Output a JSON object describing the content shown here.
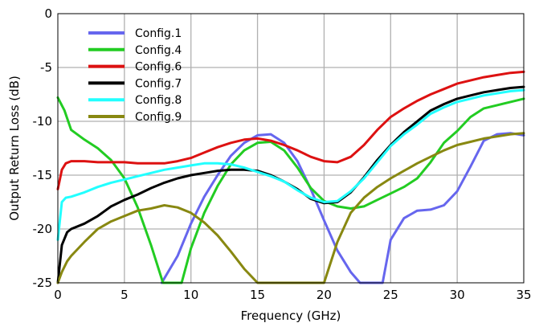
{
  "chart_data": {
    "type": "line",
    "title": "",
    "xlabel": "Frequency (GHz)",
    "ylabel": "Output Return Loss (dB)",
    "xlim": [
      0,
      35
    ],
    "ylim": [
      -25,
      0
    ],
    "xticks": [
      0,
      5,
      10,
      15,
      20,
      25,
      30,
      35
    ],
    "yticks": [
      0,
      -5,
      -10,
      -15,
      -20,
      -25
    ],
    "grid": true,
    "legend_position": "top-left",
    "series": [
      {
        "name": "Config.1",
        "color": "#6666ee",
        "x": [
          7.8,
          9,
          10,
          11,
          12,
          13,
          14,
          15,
          16,
          17,
          18,
          19,
          20,
          21,
          22,
          22.7,
          24.4,
          25,
          26,
          27,
          28,
          29,
          30,
          31,
          32,
          33,
          34,
          35
        ],
        "y": [
          -25,
          -22.5,
          -19.5,
          -17,
          -15,
          -13.2,
          -12,
          -11.3,
          -11.2,
          -12,
          -13.7,
          -16.3,
          -19.2,
          -22,
          -24,
          -25,
          -25,
          -21,
          -19,
          -18.3,
          -18.2,
          -17.8,
          -16.5,
          -14.2,
          -11.8,
          -11.2,
          -11.1,
          -11.3
        ]
      },
      {
        "name": "Config.4",
        "color": "#22cc22",
        "x": [
          0,
          0.5,
          1,
          2,
          3,
          4,
          5,
          6,
          7,
          7.9,
          9.3,
          10,
          11,
          12,
          13,
          14,
          15,
          16,
          17,
          18,
          19,
          20,
          21,
          22,
          23,
          24,
          25,
          26,
          27,
          28,
          29,
          30,
          31,
          32,
          33,
          34,
          35
        ],
        "y": [
          -7.8,
          -9,
          -10.8,
          -11.7,
          -12.5,
          -13.6,
          -15.3,
          -18,
          -21.5,
          -25,
          -25,
          -21.8,
          -18.5,
          -16,
          -14,
          -12.7,
          -12,
          -11.9,
          -12.7,
          -14.3,
          -16.2,
          -17.4,
          -17.9,
          -18.1,
          -17.9,
          -17.3,
          -16.7,
          -16.1,
          -15.3,
          -13.8,
          -12,
          -10.9,
          -9.6,
          -8.8,
          -8.5,
          -8.2,
          -7.9
        ]
      },
      {
        "name": "Config.6",
        "color": "#dd1111",
        "x": [
          0,
          0.3,
          0.6,
          1,
          2,
          3,
          4,
          5,
          6,
          7,
          8,
          9,
          10,
          11,
          12,
          13,
          14,
          15,
          16,
          17,
          18,
          19,
          20,
          21,
          22,
          23,
          24,
          25,
          26,
          27,
          28,
          29,
          30,
          31,
          32,
          33,
          34,
          35
        ],
        "y": [
          -16.3,
          -14.5,
          -13.9,
          -13.7,
          -13.7,
          -13.8,
          -13.8,
          -13.8,
          -13.9,
          -13.9,
          -13.9,
          -13.7,
          -13.4,
          -12.9,
          -12.4,
          -12,
          -11.7,
          -11.6,
          -11.8,
          -12.2,
          -12.7,
          -13.3,
          -13.7,
          -13.8,
          -13.3,
          -12.2,
          -10.8,
          -9.6,
          -8.8,
          -8.1,
          -7.5,
          -7,
          -6.5,
          -6.2,
          -5.9,
          -5.7,
          -5.5,
          -5.4
        ]
      },
      {
        "name": "Config.7",
        "color": "#000000",
        "x": [
          0,
          0.3,
          0.7,
          1,
          2,
          3,
          4,
          5,
          6,
          7,
          8,
          9,
          10,
          11,
          12,
          13,
          14,
          15,
          16,
          17,
          18,
          19,
          20,
          21,
          22,
          23,
          24,
          25,
          26,
          27,
          28,
          29,
          30,
          31,
          32,
          33,
          34,
          35
        ],
        "y": [
          -25,
          -21.5,
          -20.3,
          -20,
          -19.5,
          -18.8,
          -17.9,
          -17.3,
          -16.8,
          -16.2,
          -15.7,
          -15.3,
          -15,
          -14.8,
          -14.6,
          -14.5,
          -14.5,
          -14.6,
          -15,
          -15.6,
          -16.3,
          -17.2,
          -17.6,
          -17.5,
          -16.6,
          -15.2,
          -13.6,
          -12.2,
          -11,
          -10,
          -9,
          -8.4,
          -7.9,
          -7.6,
          -7.3,
          -7.1,
          -6.9,
          -6.8
        ]
      },
      {
        "name": "Config.8",
        "color": "#22ffff",
        "x": [
          0,
          0.3,
          0.6,
          1,
          2,
          3,
          4,
          5,
          6,
          7,
          8,
          9,
          10,
          11,
          12,
          13,
          14,
          15,
          16,
          17,
          18,
          19,
          20,
          21,
          22,
          23,
          24,
          25,
          26,
          27,
          28,
          29,
          30,
          31,
          32,
          33,
          34,
          35
        ],
        "y": [
          -21,
          -17.5,
          -17.1,
          -17,
          -16.6,
          -16.1,
          -15.7,
          -15.4,
          -15.1,
          -14.8,
          -14.5,
          -14.3,
          -14.1,
          -13.9,
          -13.9,
          -14,
          -14.3,
          -14.7,
          -15.1,
          -15.6,
          -16.4,
          -17.1,
          -17.5,
          -17.4,
          -16.5,
          -15.3,
          -13.8,
          -12.3,
          -11.2,
          -10.3,
          -9.3,
          -8.7,
          -8.2,
          -7.9,
          -7.6,
          -7.4,
          -7.2,
          -7.1
        ]
      },
      {
        "name": "Config.9",
        "color": "#888811",
        "x": [
          0,
          0.3,
          0.7,
          1,
          2,
          3,
          4,
          5,
          6,
          7,
          8,
          9,
          10,
          11,
          12,
          13,
          14,
          15,
          16,
          17,
          18,
          19,
          20,
          21,
          22,
          23,
          24,
          25,
          26,
          27,
          28,
          29,
          30,
          31,
          32,
          33,
          34,
          35
        ],
        "y": [
          -25,
          -24,
          -23,
          -22.5,
          -21.2,
          -20,
          -19.3,
          -18.8,
          -18.3,
          -18.1,
          -17.8,
          -18,
          -18.5,
          -19.4,
          -20.6,
          -22.1,
          -23.7,
          -25,
          -25,
          -25,
          -25,
          -25,
          -25,
          -21.2,
          -18.5,
          -17.1,
          -16.1,
          -15.3,
          -14.6,
          -13.9,
          -13.3,
          -12.7,
          -12.2,
          -11.9,
          -11.6,
          -11.4,
          -11.2,
          -11.1
        ]
      }
    ]
  }
}
